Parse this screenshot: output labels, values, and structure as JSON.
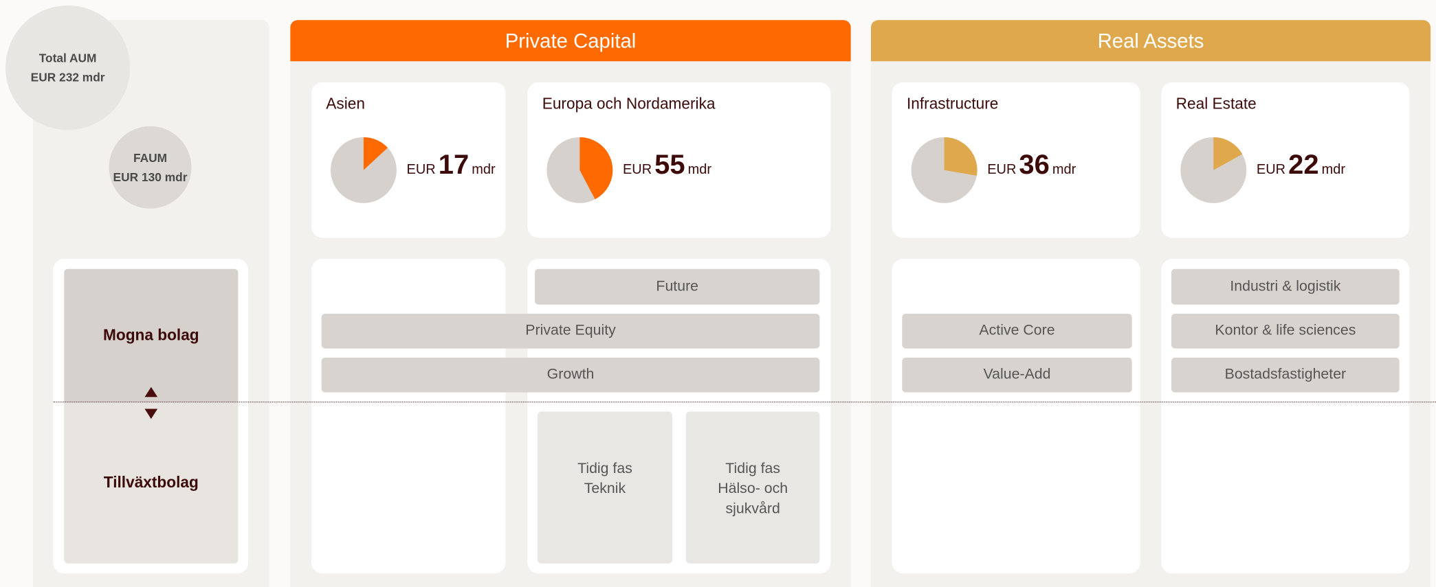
{
  "total_aum": {
    "label": "Total AUM",
    "currency": "EUR",
    "value": 232,
    "unit": "mdr"
  },
  "faum": {
    "label": "FAUM",
    "currency": "EUR",
    "value": 130,
    "unit": "mdr"
  },
  "company_stages": [
    "Mogna bolag",
    "Tillväxtbolag"
  ],
  "segments": [
    {
      "title": "Private Capital",
      "color": "#ff6a00",
      "regions": [
        {
          "name": "Asien",
          "currency": "EUR",
          "value": 17,
          "unit": "mdr"
        },
        {
          "name": "Europa och Nordamerika",
          "currency": "EUR",
          "value": 55,
          "unit": "mdr"
        }
      ],
      "strategies": [
        "Future",
        "Private Equity",
        "Growth"
      ],
      "early_stage": [
        [
          "Tidig fas",
          "Teknik"
        ],
        [
          "Tidig fas",
          "Hälso- och",
          "sjukvård"
        ]
      ]
    },
    {
      "title": "Real Assets",
      "color": "#dfa84c",
      "regions": [
        {
          "name": "Infrastructure",
          "currency": "EUR",
          "value": 36,
          "unit": "mdr"
        },
        {
          "name": "Real Estate",
          "currency": "EUR",
          "value": 22,
          "unit": "mdr"
        }
      ],
      "infrastructure_strategies": [
        "Active Core",
        "Value-Add"
      ],
      "real_estate_strategies": [
        "Industri & logistik",
        "Kontor & life sciences",
        "Bostadsfastigheter"
      ]
    }
  ]
}
